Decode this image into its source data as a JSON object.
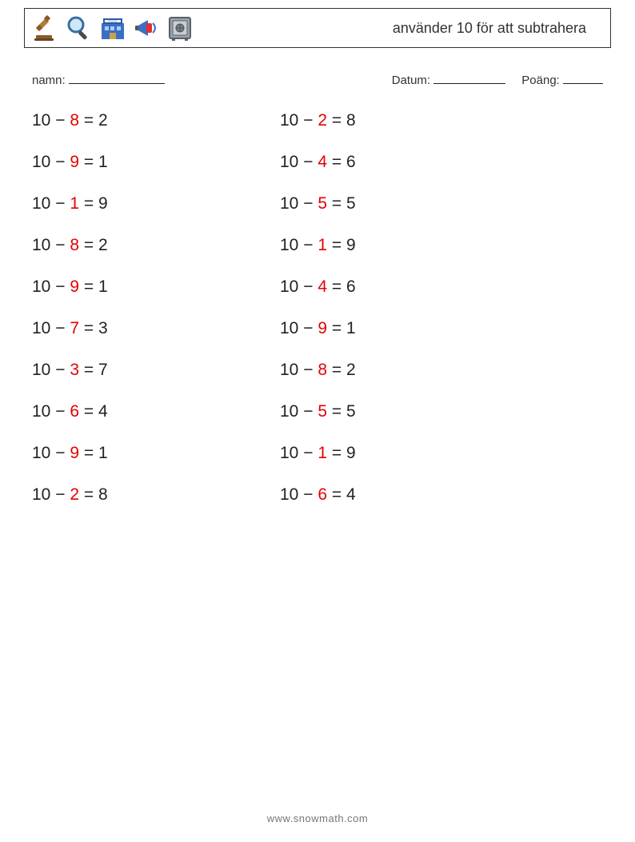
{
  "header": {
    "title": "använder 10 för att subtrahera",
    "icons": [
      "gavel-icon",
      "magnifier-icon",
      "police-station-icon",
      "megaphone-icon",
      "safe-icon"
    ]
  },
  "meta": {
    "name_label": "namn:",
    "date_label": "Datum:",
    "score_label": "Poäng:"
  },
  "style": {
    "problem_fontsize": 21,
    "text_color": "#222222",
    "subtrahend_color": "#e60000",
    "row_gap": 28,
    "left_col_width": 310
  },
  "problems": {
    "left": [
      {
        "minuend": "10",
        "op": "−",
        "subtrahend": "8",
        "eq": "=",
        "result": "2"
      },
      {
        "minuend": "10",
        "op": "−",
        "subtrahend": "9",
        "eq": "=",
        "result": "1"
      },
      {
        "minuend": "10",
        "op": "−",
        "subtrahend": "1",
        "eq": "=",
        "result": "9"
      },
      {
        "minuend": "10",
        "op": "−",
        "subtrahend": "8",
        "eq": "=",
        "result": "2"
      },
      {
        "minuend": "10",
        "op": "−",
        "subtrahend": "9",
        "eq": "=",
        "result": "1"
      },
      {
        "minuend": "10",
        "op": "−",
        "subtrahend": "7",
        "eq": "=",
        "result": "3"
      },
      {
        "minuend": "10",
        "op": "−",
        "subtrahend": "3",
        "eq": "=",
        "result": "7"
      },
      {
        "minuend": "10",
        "op": "−",
        "subtrahend": "6",
        "eq": "=",
        "result": "4"
      },
      {
        "minuend": "10",
        "op": "−",
        "subtrahend": "9",
        "eq": "=",
        "result": "1"
      },
      {
        "minuend": "10",
        "op": "−",
        "subtrahend": "2",
        "eq": "=",
        "result": "8"
      }
    ],
    "right": [
      {
        "minuend": "10",
        "op": "−",
        "subtrahend": "2",
        "eq": "=",
        "result": "8"
      },
      {
        "minuend": "10",
        "op": "−",
        "subtrahend": "4",
        "eq": "=",
        "result": "6"
      },
      {
        "minuend": "10",
        "op": "−",
        "subtrahend": "5",
        "eq": "=",
        "result": "5"
      },
      {
        "minuend": "10",
        "op": "−",
        "subtrahend": "1",
        "eq": "=",
        "result": "9"
      },
      {
        "minuend": "10",
        "op": "−",
        "subtrahend": "4",
        "eq": "=",
        "result": "6"
      },
      {
        "minuend": "10",
        "op": "−",
        "subtrahend": "9",
        "eq": "=",
        "result": "1"
      },
      {
        "minuend": "10",
        "op": "−",
        "subtrahend": "8",
        "eq": "=",
        "result": "2"
      },
      {
        "minuend": "10",
        "op": "−",
        "subtrahend": "5",
        "eq": "=",
        "result": "5"
      },
      {
        "minuend": "10",
        "op": "−",
        "subtrahend": "1",
        "eq": "=",
        "result": "9"
      },
      {
        "minuend": "10",
        "op": "−",
        "subtrahend": "6",
        "eq": "=",
        "result": "4"
      }
    ]
  },
  "footer": {
    "text": "www.snowmath.com"
  }
}
